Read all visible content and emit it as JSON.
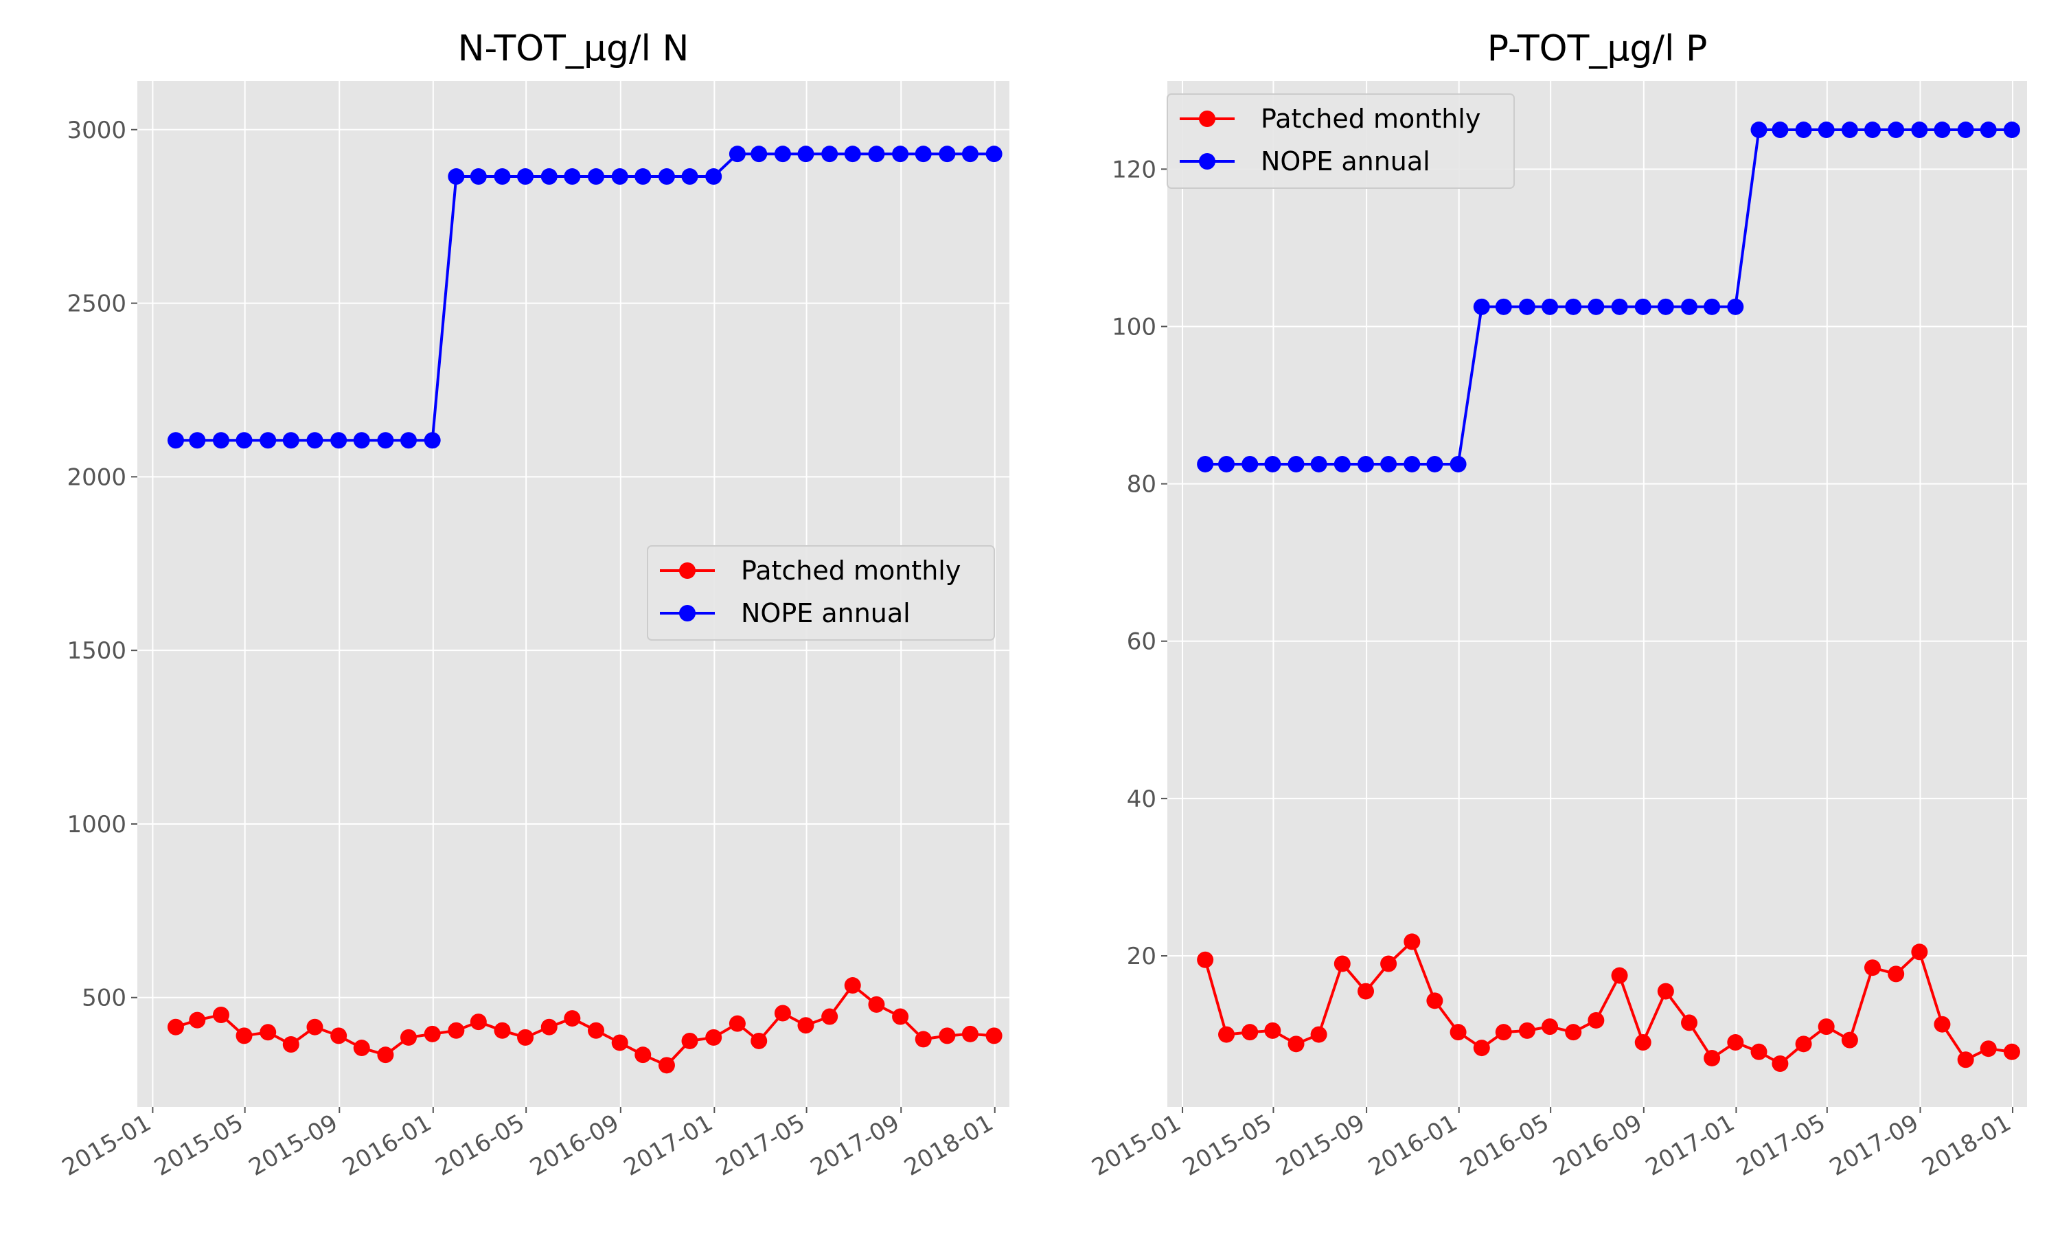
{
  "chart_data": [
    {
      "type": "line",
      "title": "N-TOT_µg/l N",
      "xlabel": "",
      "ylabel": "",
      "x_tick_labels": [
        "2015-01",
        "2015-05",
        "2015-09",
        "2016-01",
        "2016-05",
        "2016-09",
        "2017-01",
        "2017-05",
        "2017-09",
        "2018-01"
      ],
      "y_ticks": [
        500,
        1000,
        1500,
        2000,
        2500,
        3000
      ],
      "ylim": [
        185,
        3140
      ],
      "xlim": [
        "2014-12-12",
        "2018-01-20"
      ],
      "grid": true,
      "legend_position": "center-right",
      "x": [
        "2015-01-31",
        "2015-02-28",
        "2015-03-31",
        "2015-04-30",
        "2015-05-31",
        "2015-06-30",
        "2015-07-31",
        "2015-08-31",
        "2015-09-30",
        "2015-10-31",
        "2015-11-30",
        "2015-12-31",
        "2016-01-31",
        "2016-02-29",
        "2016-03-31",
        "2016-04-30",
        "2016-05-31",
        "2016-06-30",
        "2016-07-31",
        "2016-08-31",
        "2016-09-30",
        "2016-10-31",
        "2016-11-30",
        "2016-12-31",
        "2017-01-31",
        "2017-02-28",
        "2017-03-31",
        "2017-04-30",
        "2017-05-31",
        "2017-06-30",
        "2017-07-31",
        "2017-08-31",
        "2017-09-30",
        "2017-10-31",
        "2017-11-30",
        "2017-12-31"
      ],
      "series": [
        {
          "name": "Patched monthly",
          "color": "#ff0000",
          "values": [
            415,
            435,
            450,
            390,
            400,
            365,
            415,
            390,
            355,
            335,
            385,
            395,
            405,
            430,
            405,
            385,
            415,
            440,
            405,
            370,
            335,
            305,
            375,
            385,
            425,
            375,
            455,
            420,
            445,
            535,
            480,
            445,
            380,
            390,
            395,
            390
          ]
        },
        {
          "name": "NOPE annual",
          "color": "#0000ff",
          "values": [
            2105,
            2105,
            2105,
            2105,
            2105,
            2105,
            2105,
            2105,
            2105,
            2105,
            2105,
            2105,
            2865,
            2865,
            2865,
            2865,
            2865,
            2865,
            2865,
            2865,
            2865,
            2865,
            2865,
            2865,
            2930,
            2930,
            2930,
            2930,
            2930,
            2930,
            2930,
            2930,
            2930,
            2930,
            2930,
            2930
          ]
        }
      ]
    },
    {
      "type": "line",
      "title": "P-TOT_µg/l P",
      "xlabel": "",
      "ylabel": "",
      "x_tick_labels": [
        "2015-01",
        "2015-05",
        "2015-09",
        "2016-01",
        "2016-05",
        "2016-09",
        "2017-01",
        "2017-05",
        "2017-09",
        "2018-01"
      ],
      "y_ticks": [
        20,
        40,
        60,
        80,
        100,
        120
      ],
      "ylim": [
        0.8,
        131.2
      ],
      "xlim": [
        "2014-12-12",
        "2018-01-20"
      ],
      "grid": true,
      "legend_position": "top-left",
      "x": [
        "2015-01-31",
        "2015-02-28",
        "2015-03-31",
        "2015-04-30",
        "2015-05-31",
        "2015-06-30",
        "2015-07-31",
        "2015-08-31",
        "2015-09-30",
        "2015-10-31",
        "2015-11-30",
        "2015-12-31",
        "2016-01-31",
        "2016-02-29",
        "2016-03-31",
        "2016-04-30",
        "2016-05-31",
        "2016-06-30",
        "2016-07-31",
        "2016-08-31",
        "2016-09-30",
        "2016-10-31",
        "2016-11-30",
        "2016-12-31",
        "2017-01-31",
        "2017-02-28",
        "2017-03-31",
        "2017-04-30",
        "2017-05-31",
        "2017-06-30",
        "2017-07-31",
        "2017-08-31",
        "2017-09-30",
        "2017-10-31",
        "2017-11-30",
        "2017-12-31"
      ],
      "series": [
        {
          "name": "Patched monthly",
          "color": "#ff0000",
          "values": [
            19.5,
            10,
            10.3,
            10.5,
            8.8,
            10,
            19,
            15.5,
            19,
            21.8,
            14.3,
            10.3,
            8.3,
            10.3,
            10.5,
            11,
            10.3,
            11.8,
            17.5,
            9,
            15.5,
            11.5,
            7,
            9,
            7.8,
            6.3,
            8.8,
            11,
            9.3,
            18.5,
            17.7,
            20.5,
            11.3,
            6.8,
            8.2,
            7.8
          ]
        },
        {
          "name": "NOPE annual",
          "color": "#0000ff",
          "values": [
            82.5,
            82.5,
            82.5,
            82.5,
            82.5,
            82.5,
            82.5,
            82.5,
            82.5,
            82.5,
            82.5,
            82.5,
            102.5,
            102.5,
            102.5,
            102.5,
            102.5,
            102.5,
            102.5,
            102.5,
            102.5,
            102.5,
            102.5,
            102.5,
            125,
            125,
            125,
            125,
            125,
            125,
            125,
            125,
            125,
            125,
            125,
            125
          ]
        }
      ]
    }
  ]
}
